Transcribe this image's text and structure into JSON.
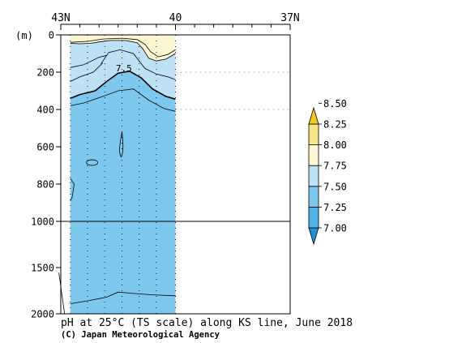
{
  "chart_data": {
    "type": "heatmap",
    "title": "pH at 25°C (TS scale) along KS line, June 2018",
    "credit": "(C) Japan Meteorological Agency",
    "x_axis": {
      "label": "",
      "ticks": [
        {
          "value": 43,
          "label": "43N"
        },
        {
          "value": 40,
          "label": "40"
        },
        {
          "value": 37,
          "label": "37N"
        }
      ],
      "range": [
        43,
        37
      ]
    },
    "y_axis": {
      "unit_label": "(m)",
      "upper_ticks": [
        0,
        200,
        400,
        600,
        800,
        1000
      ],
      "lower_ticks": [
        1000,
        1500,
        2000
      ],
      "upper_range": [
        0,
        1000
      ],
      "lower_range": [
        1000,
        2000
      ]
    },
    "stations_lat": [
      42.75,
      42.3,
      41.85,
      41.4,
      40.95,
      40.5,
      40.0
    ],
    "data_extent_lat": [
      42.75,
      40.0
    ],
    "contour_label": "7.5",
    "colorbar": {
      "levels": [
        "7.00",
        "7.25",
        "7.50",
        "7.75",
        "8.00",
        "8.25",
        "8.50"
      ],
      "colors": [
        "#1e90d6",
        "#4fb3e6",
        "#7ec8ee",
        "#bfe1f6",
        "#fbf7d2",
        "#f8e58a",
        "#f2cc1d"
      ]
    },
    "fill_colors": {
      "below_7_50": "#7ec8ee",
      "band_7_50_7_75": "#bfe1f6",
      "above_7_75": "#fbf7d2"
    }
  }
}
